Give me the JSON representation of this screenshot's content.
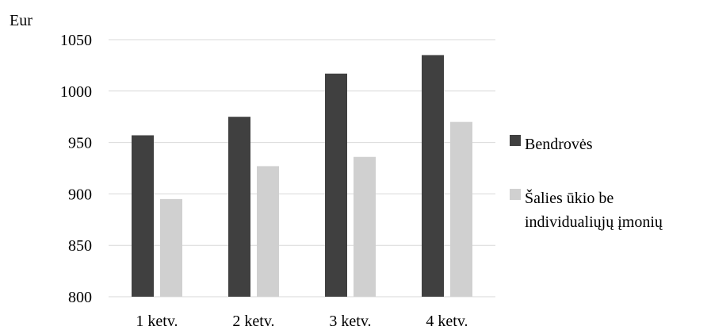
{
  "chart_data": {
    "type": "bar",
    "title": "",
    "ylabel": "Eur",
    "xlabel": "",
    "categories": [
      "1 ketv.",
      "2 ketv.",
      "3 ketv.",
      "4 ketv."
    ],
    "series": [
      {
        "name": "Bendrovės",
        "values": [
          957,
          975,
          1017,
          1035
        ],
        "color": "#404040"
      },
      {
        "name": "Šalies ūkio be individualiųjų įmonių",
        "values": [
          895,
          927,
          936,
          970
        ],
        "color": "#d0d0d0"
      }
    ],
    "ylim": [
      800,
      1050
    ],
    "yticks": [
      800,
      850,
      900,
      950,
      1000,
      1050
    ],
    "grid": true,
    "gridColor": "#d9d9d9",
    "legend": {
      "placement": "right",
      "lines": [
        [
          "Bendrovės"
        ],
        [
          "Šalies ūkio be",
          "individualiųjų įmonių"
        ]
      ]
    }
  }
}
